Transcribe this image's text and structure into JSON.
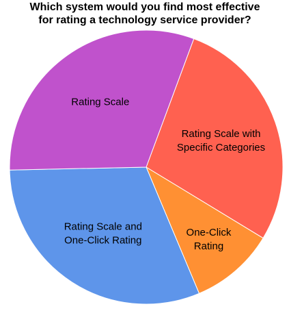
{
  "chart_data": {
    "type": "pie",
    "title": [
      "Which system would you find most effective",
      "for rating a technology service provider?"
    ],
    "categories": [
      [
        "Rating Scale with",
        "Specific Categories"
      ],
      [
        "One-Click",
        "Rating"
      ],
      [
        "Rating Scale and",
        "One-Click Rating"
      ],
      [
        "Rating Scale"
      ]
    ],
    "values": [
      28,
      10,
      31,
      31
    ],
    "colors": [
      "#ff6150",
      "#ff9033",
      "#5e95ea",
      "#c052cc"
    ]
  }
}
